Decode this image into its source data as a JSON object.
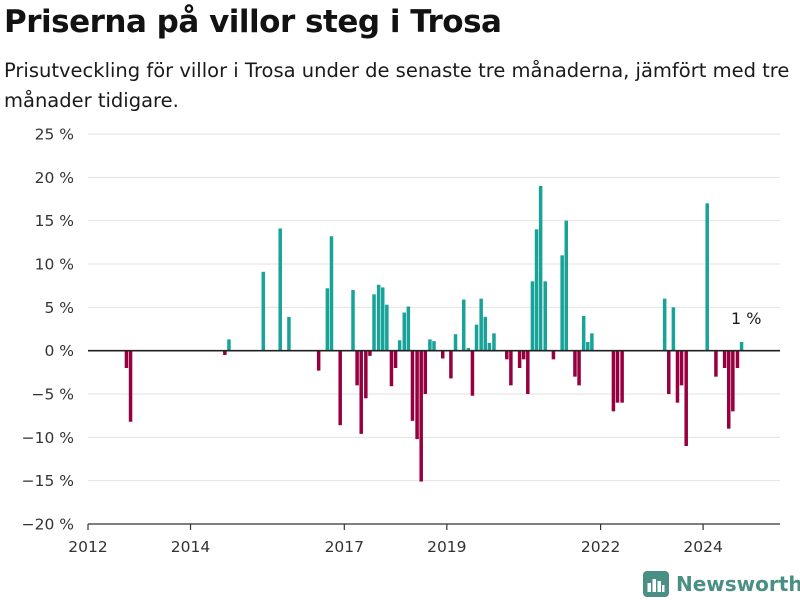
{
  "title": "Priserna på villor steg i Trosa",
  "subtitle": "Prisutveckling för villor i Trosa under de senaste tre månaderna, jämfört med tre månader tidigare.",
  "brand": "Newsworthy",
  "colors": {
    "positive": "#17a398",
    "negative": "#96003f",
    "zero_line": "#222222",
    "grid": "#e2e2e2",
    "brand": "#4a8f84"
  },
  "chart_data": {
    "type": "bar",
    "title": "Priserna på villor steg i Trosa",
    "xlabel": "",
    "ylabel": "",
    "ylim": [
      -20,
      25
    ],
    "xlim": [
      2012.0,
      2025.5
    ],
    "yticks": [
      25,
      20,
      15,
      10,
      5,
      0,
      -5,
      -10,
      -15,
      -20
    ],
    "ytick_labels": [
      "25 %",
      "20 %",
      "15 %",
      "10 %",
      "5 %",
      "0 %",
      "−5 %",
      "−10 %",
      "−15 %",
      "−20 %"
    ],
    "xticks": [
      2012,
      2014,
      2017,
      2019,
      2022,
      2024
    ],
    "xtick_labels": [
      "2012",
      "2014",
      "2017",
      "2019",
      "2022",
      "2024"
    ],
    "grid": true,
    "value_unit": "%",
    "annotation": {
      "text": "1 %",
      "x": 2024.88,
      "y": 1
    },
    "points": [
      {
        "x": 2012.75,
        "y": -2
      },
      {
        "x": 2012.83,
        "y": -8.2
      },
      {
        "x": 2014.67,
        "y": -0.5
      },
      {
        "x": 2014.75,
        "y": 1.3
      },
      {
        "x": 2015.42,
        "y": 9.1
      },
      {
        "x": 2015.75,
        "y": 14.1
      },
      {
        "x": 2015.92,
        "y": 3.9
      },
      {
        "x": 2016.5,
        "y": -2.3
      },
      {
        "x": 2016.67,
        "y": 7.2
      },
      {
        "x": 2016.75,
        "y": 13.2
      },
      {
        "x": 2016.92,
        "y": -8.6
      },
      {
        "x": 2017.17,
        "y": 7.0
      },
      {
        "x": 2017.25,
        "y": -4.0
      },
      {
        "x": 2017.33,
        "y": -9.6
      },
      {
        "x": 2017.42,
        "y": -5.5
      },
      {
        "x": 2017.5,
        "y": -0.6
      },
      {
        "x": 2017.58,
        "y": 6.5
      },
      {
        "x": 2017.67,
        "y": 7.6
      },
      {
        "x": 2017.75,
        "y": 7.3
      },
      {
        "x": 2017.83,
        "y": 5.3
      },
      {
        "x": 2017.92,
        "y": -4.1
      },
      {
        "x": 2018.0,
        "y": -2.0
      },
      {
        "x": 2018.08,
        "y": 1.2
      },
      {
        "x": 2018.17,
        "y": 4.4
      },
      {
        "x": 2018.25,
        "y": 5.1
      },
      {
        "x": 2018.33,
        "y": -8.1
      },
      {
        "x": 2018.42,
        "y": -10.2
      },
      {
        "x": 2018.5,
        "y": -15.1
      },
      {
        "x": 2018.58,
        "y": -5.0
      },
      {
        "x": 2018.67,
        "y": 1.3
      },
      {
        "x": 2018.75,
        "y": 1.1
      },
      {
        "x": 2018.92,
        "y": -0.9
      },
      {
        "x": 2019.08,
        "y": -3.2
      },
      {
        "x": 2019.17,
        "y": 1.9
      },
      {
        "x": 2019.33,
        "y": 5.9
      },
      {
        "x": 2019.42,
        "y": 0.3
      },
      {
        "x": 2019.5,
        "y": -5.2
      },
      {
        "x": 2019.58,
        "y": 3.0
      },
      {
        "x": 2019.67,
        "y": 6.0
      },
      {
        "x": 2019.75,
        "y": 3.9
      },
      {
        "x": 2019.83,
        "y": 0.9
      },
      {
        "x": 2019.92,
        "y": 2.0
      },
      {
        "x": 2020.17,
        "y": -1.0
      },
      {
        "x": 2020.25,
        "y": -4.0
      },
      {
        "x": 2020.42,
        "y": -2.0
      },
      {
        "x": 2020.5,
        "y": -1.0
      },
      {
        "x": 2020.58,
        "y": -5.0
      },
      {
        "x": 2020.67,
        "y": 8.0
      },
      {
        "x": 2020.75,
        "y": 14.0
      },
      {
        "x": 2020.83,
        "y": 19.0
      },
      {
        "x": 2020.92,
        "y": 8.0
      },
      {
        "x": 2021.08,
        "y": -1.0
      },
      {
        "x": 2021.25,
        "y": 11.0
      },
      {
        "x": 2021.33,
        "y": 15.0
      },
      {
        "x": 2021.5,
        "y": -3.0
      },
      {
        "x": 2021.58,
        "y": -4.0
      },
      {
        "x": 2021.67,
        "y": 4.0
      },
      {
        "x": 2021.75,
        "y": 1.0
      },
      {
        "x": 2021.83,
        "y": 2.0
      },
      {
        "x": 2022.25,
        "y": -7.0
      },
      {
        "x": 2022.33,
        "y": -6.0
      },
      {
        "x": 2022.42,
        "y": -6.0
      },
      {
        "x": 2023.25,
        "y": 6.0
      },
      {
        "x": 2023.33,
        "y": -5.0
      },
      {
        "x": 2023.42,
        "y": 5.0
      },
      {
        "x": 2023.5,
        "y": -6.0
      },
      {
        "x": 2023.58,
        "y": -4.0
      },
      {
        "x": 2023.67,
        "y": -11.0
      },
      {
        "x": 2024.08,
        "y": 17.0
      },
      {
        "x": 2024.25,
        "y": -3.0
      },
      {
        "x": 2024.42,
        "y": -2.0
      },
      {
        "x": 2024.5,
        "y": -9.0
      },
      {
        "x": 2024.58,
        "y": -7.0
      },
      {
        "x": 2024.67,
        "y": -2.0
      },
      {
        "x": 2024.75,
        "y": 1.0
      }
    ]
  }
}
